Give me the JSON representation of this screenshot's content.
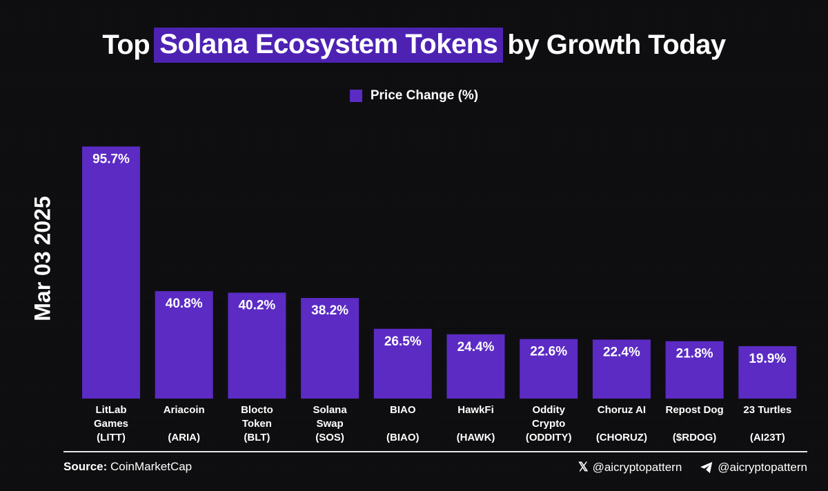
{
  "header": {
    "title_before": "Top",
    "title_highlight": "Solana Ecosystem Tokens",
    "title_after": "by Growth Today"
  },
  "legend": {
    "label": "Price Change (%)",
    "color": "#5b2bc4"
  },
  "date_label": "Mar 03 2025",
  "footer": {
    "source_label": "Source:",
    "source_value": "CoinMarketCap",
    "x_handle": "@aicryptopattern",
    "telegram_handle": "@aicryptopattern",
    "x_icon": "x-logo-icon",
    "telegram_icon": "telegram-icon"
  },
  "chart_data": {
    "type": "bar",
    "title": "Top Solana Ecosystem Tokens by Growth Today",
    "xlabel": "",
    "ylabel": "Mar 03 2025",
    "categories": [
      [
        "LitLab",
        "Games",
        "(LITT)"
      ],
      [
        "Ariacoin",
        "",
        "(ARIA)"
      ],
      [
        "Blocto",
        "Token",
        "(BLT)"
      ],
      [
        "Solana",
        "Swap",
        "(SOS)"
      ],
      [
        "BIAO",
        "",
        "(BIAO)"
      ],
      [
        "HawkFi",
        "",
        "(HAWK)"
      ],
      [
        "Oddity",
        "Crypto",
        "(ODDITY)"
      ],
      [
        "Choruz AI",
        "",
        "(CHORUZ)"
      ],
      [
        "Repost Dog",
        "",
        "($RDOG)"
      ],
      [
        "23 Turtles",
        "",
        "(AI23T)"
      ]
    ],
    "series": [
      {
        "name": "Price Change (%)",
        "values": [
          95.7,
          40.8,
          40.2,
          38.2,
          26.5,
          24.4,
          22.6,
          22.4,
          21.8,
          19.9
        ],
        "labels": [
          "95.7%",
          "40.8%",
          "40.2%",
          "38.2%",
          "26.5%",
          "24.4%",
          "22.6%",
          "22.4%",
          "21.8%",
          "19.9%"
        ],
        "color": "#5b2bc4"
      }
    ],
    "ylim": [
      0,
      100
    ],
    "grid": false,
    "legend_position": "top-center"
  }
}
